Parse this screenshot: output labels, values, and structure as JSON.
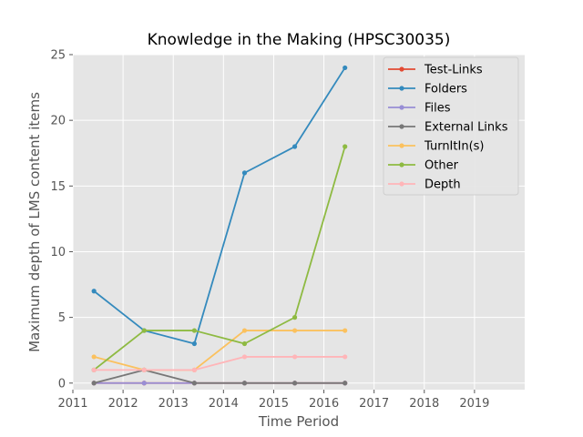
{
  "chart_data": {
    "type": "line",
    "title": "Knowledge in the Making (HPSC30035)",
    "xlabel": "Time Period",
    "ylabel": "Maximum depth of LMS content items",
    "xlim": [
      2011,
      2020
    ],
    "ylim": [
      -0.5,
      25
    ],
    "x_ticks": [
      2011,
      2012,
      2013,
      2014,
      2015,
      2016,
      2017,
      2018,
      2019
    ],
    "y_ticks": [
      0,
      5,
      10,
      15,
      20,
      25
    ],
    "grid": true,
    "legend_position": "top-right",
    "x": [
      2011.42,
      2012.42,
      2013.42,
      2014.42,
      2015.42,
      2016.42
    ],
    "series": [
      {
        "name": "Test-Links",
        "color": "#e24a33",
        "values": [
          0,
          0,
          0,
          0,
          0,
          0
        ]
      },
      {
        "name": "Folders",
        "color": "#348abd",
        "values": [
          7,
          4,
          3,
          16,
          18,
          24
        ]
      },
      {
        "name": "Files",
        "color": "#988ed5",
        "values": [
          0,
          0,
          0,
          0,
          0,
          0
        ]
      },
      {
        "name": "External Links",
        "color": "#777777",
        "values": [
          0,
          1,
          0,
          0,
          0,
          0
        ]
      },
      {
        "name": "TurnItIn(s)",
        "color": "#fbc15e",
        "values": [
          2,
          1,
          1,
          4,
          4,
          4
        ]
      },
      {
        "name": "Other",
        "color": "#8eba42",
        "values": [
          1,
          4,
          4,
          3,
          5,
          18
        ]
      },
      {
        "name": "Depth",
        "color": "#ffb5b8",
        "values": [
          1,
          1,
          1,
          2,
          2,
          2
        ]
      }
    ]
  }
}
